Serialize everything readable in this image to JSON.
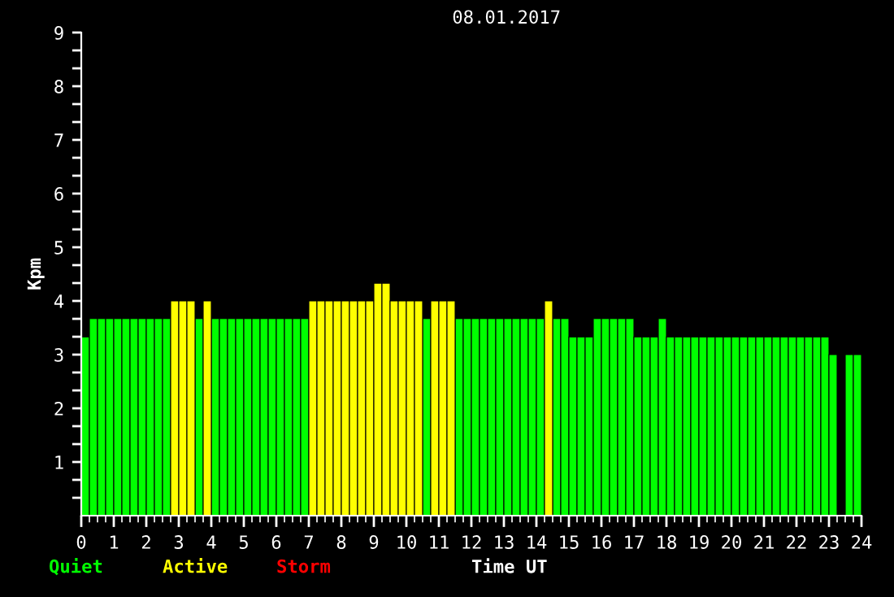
{
  "chart_data": {
    "type": "bar",
    "title": "08.01.2017",
    "xlabel": "Time UT",
    "ylabel": "Kpm",
    "x": [
      0,
      0.25,
      0.5,
      0.75,
      1,
      1.25,
      1.5,
      1.75,
      2,
      2.25,
      2.5,
      2.75,
      3,
      3.25,
      3.5,
      3.75,
      4,
      4.25,
      4.5,
      4.75,
      5,
      5.25,
      5.5,
      5.75,
      6,
      6.25,
      6.5,
      6.75,
      7,
      7.25,
      7.5,
      7.75,
      8,
      8.25,
      8.5,
      8.75,
      9,
      9.25,
      9.5,
      9.75,
      10,
      10.25,
      10.5,
      10.75,
      11,
      11.25,
      11.5,
      11.75,
      12,
      12.25,
      12.5,
      12.75,
      13,
      13.25,
      13.5,
      13.75,
      14,
      14.25,
      14.5,
      14.75,
      15,
      15.25,
      15.5,
      15.75,
      16,
      16.25,
      16.5,
      16.75,
      17,
      17.25,
      17.5,
      17.75,
      18,
      18.25,
      18.5,
      18.75,
      19,
      19.25,
      19.5,
      19.75,
      20,
      20.25,
      20.5,
      20.75,
      21,
      21.25,
      21.5,
      21.75,
      22,
      22.25,
      22.5,
      22.75,
      23,
      23.25,
      23.5,
      23.75
    ],
    "series": [
      {
        "name": "Quiet",
        "color": "#00ff00",
        "values": [
          3.33,
          3.67,
          3.67,
          3.67,
          3.67,
          3.67,
          3.67,
          3.67,
          3.67,
          3.67,
          3.67,
          null,
          null,
          null,
          3.67,
          null,
          3.67,
          3.67,
          3.67,
          3.67,
          3.67,
          3.67,
          3.67,
          3.67,
          3.67,
          3.67,
          3.67,
          3.67,
          null,
          null,
          null,
          null,
          null,
          null,
          null,
          null,
          null,
          null,
          null,
          null,
          null,
          null,
          3.67,
          null,
          null,
          null,
          3.67,
          3.67,
          3.67,
          3.67,
          3.67,
          3.67,
          3.67,
          3.67,
          3.67,
          3.67,
          3.67,
          null,
          3.67,
          3.67,
          3.33,
          3.33,
          3.33,
          3.67,
          3.67,
          3.67,
          3.67,
          3.67,
          3.33,
          3.33,
          3.33,
          3.67,
          3.33,
          3.33,
          3.33,
          3.33,
          3.33,
          3.33,
          3.33,
          3.33,
          3.33,
          3.33,
          3.33,
          3.33,
          3.33,
          3.33,
          3.33,
          3.33,
          3.33,
          3.33,
          3.33,
          3.33,
          3.0,
          null,
          3.0,
          3.0
        ]
      },
      {
        "name": "Active",
        "color": "#ffff00",
        "values": [
          null,
          null,
          null,
          null,
          null,
          null,
          null,
          null,
          null,
          null,
          null,
          4,
          4,
          4,
          null,
          4,
          null,
          null,
          null,
          null,
          null,
          null,
          null,
          null,
          null,
          null,
          null,
          null,
          4,
          4,
          4,
          4,
          4,
          4,
          4,
          4,
          4.33,
          4.33,
          4,
          4,
          4,
          4,
          null,
          4,
          4,
          4,
          null,
          null,
          null,
          null,
          null,
          null,
          null,
          null,
          null,
          null,
          null,
          4,
          null,
          null,
          null,
          null,
          null,
          null,
          null,
          null,
          null,
          null,
          null,
          null,
          null,
          null,
          null,
          null,
          null,
          null,
          null,
          null,
          null,
          null,
          null,
          null,
          null,
          null,
          null,
          null,
          null,
          null,
          null,
          null,
          null,
          null,
          null,
          null,
          null,
          null
        ]
      },
      {
        "name": "Storm",
        "color": "#ff0000",
        "values": [
          null,
          null,
          null,
          null,
          null,
          null,
          null,
          null,
          null,
          null,
          null,
          null,
          null,
          null,
          null,
          null,
          null,
          null,
          null,
          null,
          null,
          null,
          null,
          null,
          null,
          null,
          null,
          null,
          null,
          null,
          null,
          null,
          null,
          null,
          null,
          null,
          null,
          null,
          null,
          null,
          null,
          null,
          null,
          null,
          null,
          null,
          null,
          null,
          null,
          null,
          null,
          null,
          null,
          null,
          null,
          null,
          null,
          null,
          null,
          null,
          null,
          null,
          null,
          null,
          null,
          null,
          null,
          null,
          null,
          null,
          null,
          null,
          null,
          null,
          null,
          null,
          null,
          null,
          null,
          null,
          null,
          null,
          null,
          null,
          null,
          null,
          null,
          null,
          null,
          null,
          null,
          null,
          null,
          null,
          null,
          null
        ]
      }
    ],
    "xlim": [
      0,
      24
    ],
    "xticks": [
      0,
      1,
      2,
      3,
      4,
      5,
      6,
      7,
      8,
      9,
      10,
      11,
      12,
      13,
      14,
      15,
      16,
      17,
      18,
      19,
      20,
      21,
      22,
      23,
      24
    ],
    "ylim": [
      0,
      9
    ],
    "yticks": [
      {
        "value": 0.333,
        "label": null
      },
      {
        "value": 0.667,
        "label": null
      },
      1,
      {
        "value": 1.333,
        "label": null
      },
      {
        "value": 1.667,
        "label": null
      },
      2,
      {
        "value": 2.333,
        "label": null
      },
      {
        "value": 2.667,
        "label": null
      },
      3,
      {
        "value": 3.333,
        "label": null
      },
      {
        "value": 3.667,
        "label": null
      },
      4,
      {
        "value": 4.333,
        "label": null
      },
      {
        "value": 4.667,
        "label": null
      },
      5,
      {
        "value": 5.333,
        "label": null
      },
      {
        "value": 5.667,
        "label": null
      },
      6,
      {
        "value": 6.333,
        "label": null
      },
      {
        "value": 6.667,
        "label": null
      },
      7,
      {
        "value": 7.333,
        "label": null
      },
      {
        "value": 7.667,
        "label": null
      },
      8,
      {
        "value": 8.333,
        "label": null
      },
      {
        "value": 8.667,
        "label": null
      },
      9
    ],
    "grid": false,
    "legend": "bottom left"
  }
}
